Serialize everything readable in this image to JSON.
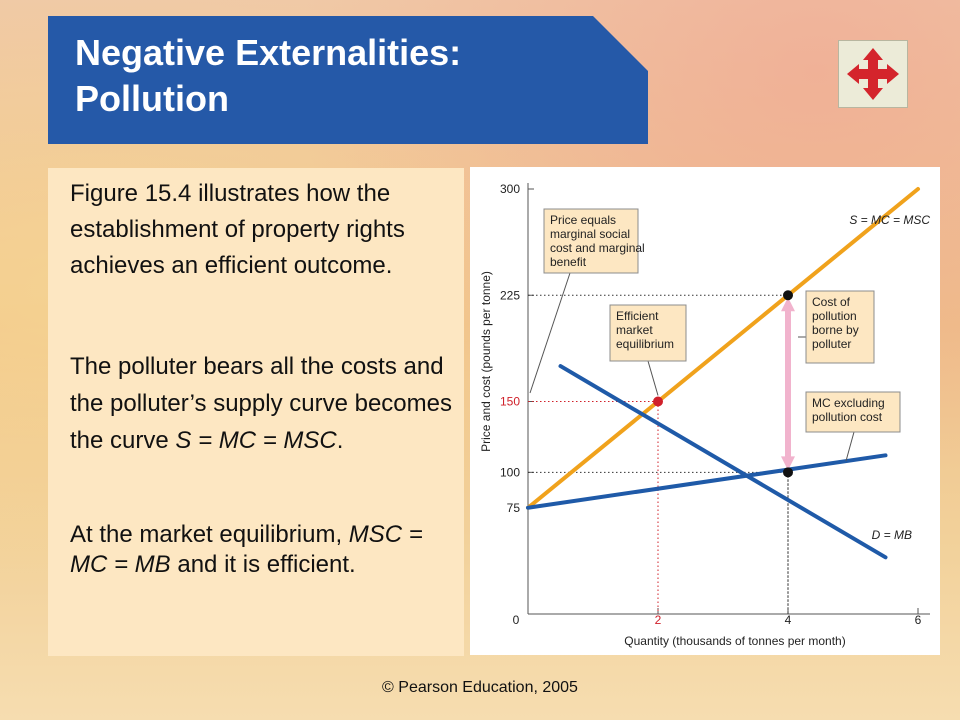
{
  "slide": {
    "title_line1": "Negative Externalities:",
    "title_line2": "Pollution",
    "nav_icon": "four-arrows-move-icon",
    "accent_color": "#2559a8",
    "nav_icon_color": "#d4242c",
    "paragraphs": [
      {
        "text": "Figure 15.4 illustrates how the establishment of property rights achieves an efficient outcome."
      },
      {
        "pre": "The polluter bears all the costs and the polluter’s supply curve becomes the curve ",
        "italic": "S = MC = MSC",
        "post": "."
      },
      {
        "pre": "At the market equilibrium, ",
        "italic": "MSC = MC = MB",
        "post": " and it is efficient."
      }
    ],
    "footer": "© Pearson Education, 2005"
  },
  "chart_data": {
    "type": "line",
    "xlabel": "Quantity (thousands of tonnes per month)",
    "ylabel": "Price and cost (pounds per tonne)",
    "xlim": [
      0,
      6
    ],
    "ylim": [
      0,
      300
    ],
    "x_ticks": [
      "0",
      "2",
      "4",
      "6"
    ],
    "y_ticks": [
      "75",
      "100",
      "150",
      "225",
      "300"
    ],
    "highlight_ticks": {
      "x": "2",
      "y": "150"
    },
    "series": [
      {
        "name": "S = MC = MSC",
        "color": "#f0a21c",
        "points": [
          [
            0,
            75
          ],
          [
            6,
            300
          ]
        ]
      },
      {
        "name": "D = MB",
        "color": "#1f5aa8",
        "points": [
          [
            0.5,
            175
          ],
          [
            5.5,
            40
          ]
        ]
      },
      {
        "name": "MC excluding pollution cost",
        "color": "#1f5aa8",
        "points": [
          [
            0,
            75
          ],
          [
            5.5,
            112
          ]
        ]
      }
    ],
    "points": [
      {
        "label": "Efficient market equilibrium",
        "x": 2,
        "y": 150,
        "color": "#d0202a"
      },
      {
        "x": 4,
        "y": 225,
        "color": "#111111"
      },
      {
        "x": 4,
        "y": 100,
        "color": "#111111"
      }
    ],
    "guides": [
      {
        "x": 2,
        "y": 150,
        "color": "#d0202a"
      },
      {
        "x": 4,
        "y": 225,
        "color": "#333333"
      },
      {
        "x": 4,
        "y": 100,
        "color": "#333333"
      }
    ],
    "arrow": {
      "x": 4,
      "from": 100,
      "to": 225,
      "color": "#f1b3cd"
    },
    "callouts": [
      {
        "key": "price",
        "lines": [
          "Price equals",
          "marginal social",
          "cost and marginal",
          "benefit"
        ]
      },
      {
        "key": "efficient",
        "lines": [
          "Efficient",
          "market",
          "equilibrium"
        ]
      },
      {
        "key": "cost",
        "lines": [
          "Cost of",
          "pollution",
          "borne by",
          "polluter"
        ]
      },
      {
        "key": "mcex",
        "lines": [
          "MC excluding",
          "pollution cost"
        ]
      }
    ],
    "curve_labels": {
      "s": "S = MC = MSC",
      "d": "D = MB"
    }
  }
}
